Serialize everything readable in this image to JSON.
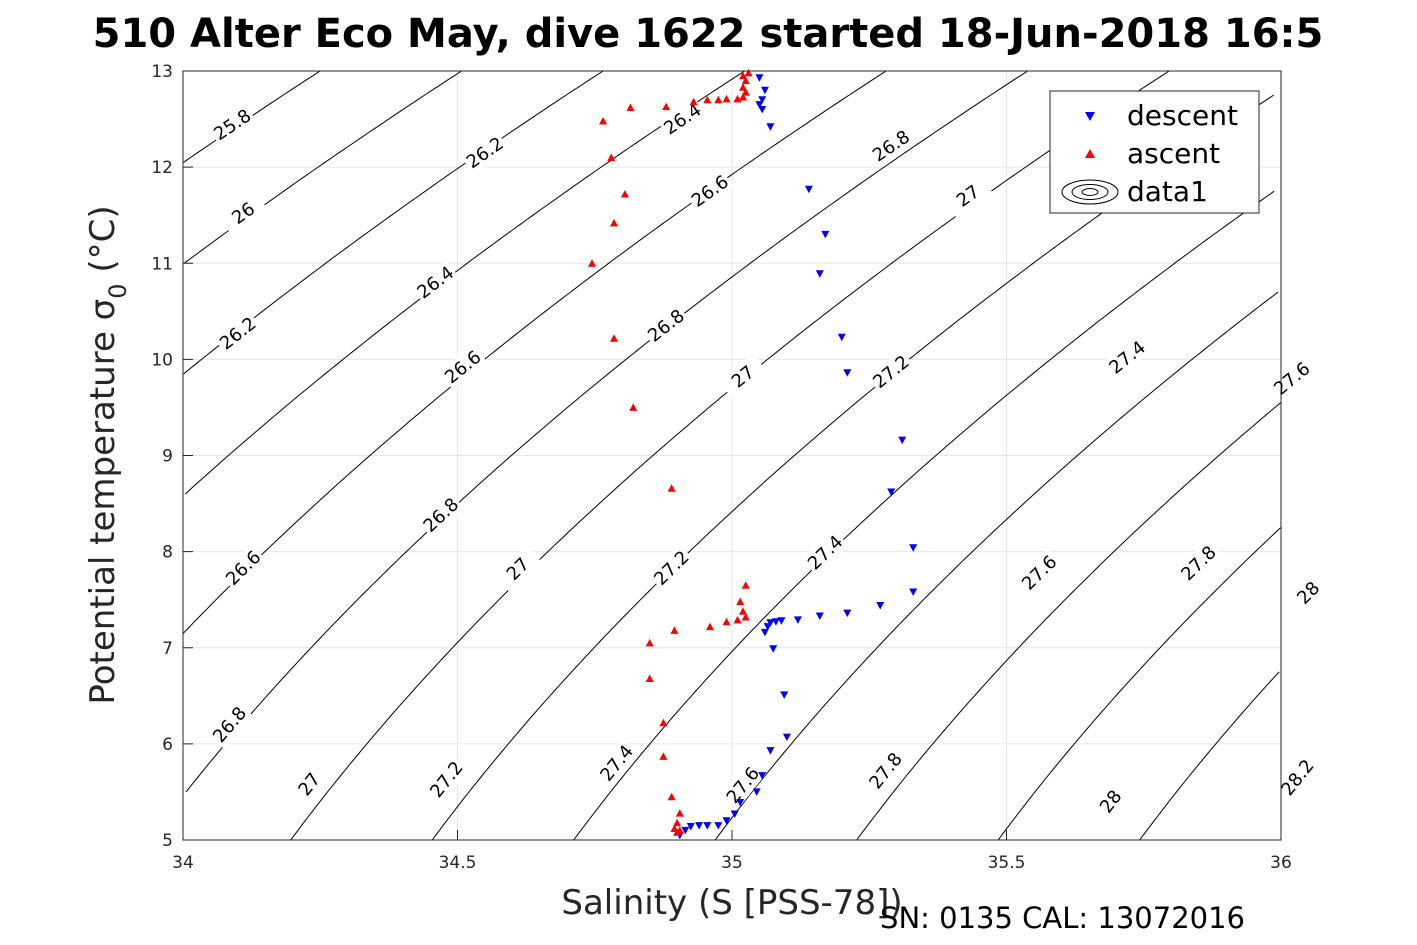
{
  "chart_data": {
    "type": "scatter",
    "title": "510 Alter Eco May, dive 1622 started 18-Jun-2018 16:5",
    "xlabel": "Salinity (S [PSS-78])",
    "ylabel": "Potential temperature σ",
    "ylabel_subscript": "0",
    "ylabel_unit": " (°C)",
    "xlim": [
      34,
      36
    ],
    "ylim": [
      5,
      13
    ],
    "xticks": [
      34,
      34.5,
      35,
      35.5,
      36
    ],
    "xtick_labels": [
      "34",
      "34.5",
      "35",
      "35.5",
      "36"
    ],
    "yticks": [
      5,
      6,
      7,
      8,
      9,
      10,
      11,
      12,
      13
    ],
    "ytick_labels": [
      "5",
      "6",
      "7",
      "8",
      "9",
      "10",
      "11",
      "12",
      "13"
    ],
    "grid": true,
    "legend_position": "top-right",
    "legend": [
      "descent",
      "ascent",
      "data1"
    ],
    "footer": "SN: 0135  CAL: 13072016",
    "colors": {
      "descent": "#0000ff",
      "ascent": "#ff0000",
      "contour": "#000000"
    },
    "series": [
      {
        "name": "descent",
        "marker": "triangle-down",
        "points": [
          [
            35.05,
            12.93
          ],
          [
            35.06,
            12.8
          ],
          [
            35.055,
            12.7
          ],
          [
            35.05,
            12.65
          ],
          [
            35.055,
            12.6
          ],
          [
            35.07,
            12.42
          ],
          [
            35.14,
            11.77
          ],
          [
            35.17,
            11.3
          ],
          [
            35.16,
            10.89
          ],
          [
            35.2,
            10.23
          ],
          [
            35.21,
            9.86
          ],
          [
            35.31,
            9.16
          ],
          [
            35.29,
            8.62
          ],
          [
            35.33,
            8.04
          ],
          [
            35.33,
            7.58
          ],
          [
            35.27,
            7.44
          ],
          [
            35.21,
            7.36
          ],
          [
            35.16,
            7.33
          ],
          [
            35.12,
            7.29
          ],
          [
            35.09,
            7.28
          ],
          [
            35.08,
            7.27
          ],
          [
            35.07,
            7.26
          ],
          [
            35.065,
            7.22
          ],
          [
            35.06,
            7.16
          ],
          [
            35.075,
            6.99
          ],
          [
            35.095,
            6.51
          ],
          [
            35.1,
            6.07
          ],
          [
            35.07,
            5.93
          ],
          [
            35.055,
            5.67
          ],
          [
            35.045,
            5.5
          ],
          [
            35.015,
            5.39
          ],
          [
            35.005,
            5.27
          ],
          [
            34.99,
            5.2
          ],
          [
            34.975,
            5.15
          ],
          [
            34.955,
            5.15
          ],
          [
            34.94,
            5.15
          ],
          [
            34.925,
            5.14
          ],
          [
            34.915,
            5.1
          ],
          [
            34.905,
            5.05
          ]
        ]
      },
      {
        "name": "ascent",
        "marker": "triangle-up",
        "points": [
          [
            35.03,
            12.98
          ],
          [
            35.02,
            12.95
          ],
          [
            35.025,
            12.9
          ],
          [
            35.02,
            12.83
          ],
          [
            35.025,
            12.78
          ],
          [
            35.02,
            12.73
          ],
          [
            35.01,
            12.71
          ],
          [
            34.99,
            12.71
          ],
          [
            34.975,
            12.7
          ],
          [
            34.955,
            12.7
          ],
          [
            34.93,
            12.68
          ],
          [
            34.88,
            12.63
          ],
          [
            34.815,
            12.62
          ],
          [
            34.765,
            12.48
          ],
          [
            34.78,
            12.1
          ],
          [
            34.805,
            11.72
          ],
          [
            34.785,
            11.42
          ],
          [
            34.745,
            11.0
          ],
          [
            34.785,
            10.22
          ],
          [
            34.82,
            9.5
          ],
          [
            34.89,
            8.66
          ],
          [
            34.895,
            7.18
          ],
          [
            34.96,
            7.22
          ],
          [
            34.99,
            7.27
          ],
          [
            35.01,
            7.29
          ],
          [
            35.025,
            7.32
          ],
          [
            35.02,
            7.38
          ],
          [
            35.015,
            7.48
          ],
          [
            35.025,
            7.65
          ],
          [
            34.85,
            7.05
          ],
          [
            34.85,
            6.68
          ],
          [
            34.875,
            6.22
          ],
          [
            34.875,
            5.87
          ],
          [
            34.89,
            5.45
          ],
          [
            34.905,
            5.28
          ],
          [
            34.9,
            5.18
          ],
          [
            34.895,
            5.12
          ],
          [
            34.9,
            5.08
          ],
          [
            34.905,
            5.1
          ]
        ]
      }
    ],
    "contours": {
      "name": "data1",
      "levels": [
        25.8,
        26,
        26.2,
        26.4,
        26.6,
        26.8,
        27,
        27.2,
        27.4,
        27.6,
        27.8,
        28,
        28.2
      ],
      "labels": [
        {
          "text": "25.8",
          "s": 34.09,
          "t": 12.44
        },
        {
          "text": "26",
          "s": 34.11,
          "t": 11.52
        },
        {
          "text": "26.2",
          "s": 34.1,
          "t": 10.27
        },
        {
          "text": "26.6",
          "s": 34.11,
          "t": 7.83
        },
        {
          "text": "26.8",
          "s": 34.085,
          "t": 6.2
        },
        {
          "text": "27",
          "s": 34.23,
          "t": 5.58
        },
        {
          "text": "26.2",
          "s": 34.55,
          "t": 12.15
        },
        {
          "text": "26.4",
          "s": 34.46,
          "t": 10.8
        },
        {
          "text": "26.6",
          "s": 34.51,
          "t": 9.92
        },
        {
          "text": "26.8",
          "s": 34.47,
          "t": 8.38
        },
        {
          "text": "27",
          "s": 34.61,
          "t": 7.82
        },
        {
          "text": "27.2",
          "s": 34.48,
          "t": 5.63
        },
        {
          "text": "26.4",
          "s": 34.91,
          "t": 12.5
        },
        {
          "text": "26.6",
          "s": 34.96,
          "t": 11.75
        },
        {
          "text": "26.8",
          "s": 34.88,
          "t": 10.35
        },
        {
          "text": "27",
          "s": 35.02,
          "t": 9.82
        },
        {
          "text": "27.2",
          "s": 34.89,
          "t": 7.83
        },
        {
          "text": "27.4",
          "s": 34.79,
          "t": 5.8
        },
        {
          "text": "26.8",
          "s": 35.29,
          "t": 12.22
        },
        {
          "text": "27",
          "s": 35.43,
          "t": 11.7
        },
        {
          "text": "27.2",
          "s": 35.29,
          "t": 9.87
        },
        {
          "text": "27.4",
          "s": 35.17,
          "t": 7.99
        },
        {
          "text": "27.6",
          "s": 35.02,
          "t": 5.57
        },
        {
          "text": "27.4",
          "s": 35.72,
          "t": 10.02
        },
        {
          "text": "27.6",
          "s": 35.56,
          "t": 7.78
        },
        {
          "text": "27.8",
          "s": 35.28,
          "t": 5.72
        },
        {
          "text": "27.6",
          "s": 36.02,
          "t": 9.8
        },
        {
          "text": "27.8",
          "s": 35.85,
          "t": 7.88
        },
        {
          "text": "28",
          "s": 35.69,
          "t": 5.4
        },
        {
          "text": "28",
          "s": 36.05,
          "t": 7.57
        },
        {
          "text": "28.2",
          "s": 36.03,
          "t": 5.65
        }
      ]
    }
  }
}
